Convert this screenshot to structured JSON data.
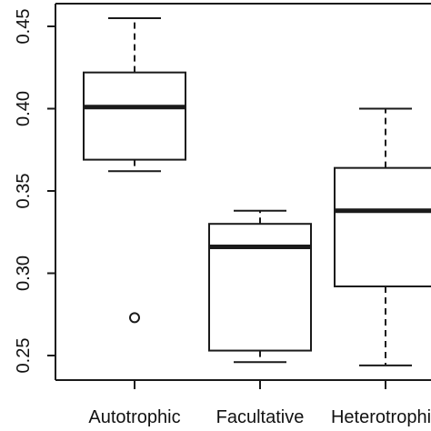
{
  "chart_data": {
    "type": "box",
    "title": "",
    "xlabel": "",
    "ylabel": "",
    "ylim": [
      0.24,
      0.46
    ],
    "yticks": [
      0.25,
      0.3,
      0.35,
      0.4,
      0.45
    ],
    "ytick_labels": [
      "0.25",
      "0.30",
      "0.35",
      "0.40",
      "0.45"
    ],
    "categories": [
      "Autotrophic",
      "Facultative",
      "Heterotrophic"
    ],
    "boxes": [
      {
        "category": "Autotrophic",
        "min": 0.362,
        "q1": 0.369,
        "median": 0.401,
        "q3": 0.422,
        "max": 0.455,
        "outliers": [
          0.273
        ]
      },
      {
        "category": "Facultative",
        "min": 0.246,
        "q1": 0.253,
        "median": 0.316,
        "q3": 0.33,
        "max": 0.338,
        "outliers": []
      },
      {
        "category": "Heterotrophic",
        "min": 0.244,
        "q1": 0.292,
        "median": 0.338,
        "q3": 0.364,
        "max": 0.4,
        "outliers": []
      }
    ],
    "grid": false,
    "legend": "none"
  },
  "colors": {
    "box_fill": "#ffffff",
    "stroke": "#1a1a1a",
    "median": "#1a1a1a"
  }
}
